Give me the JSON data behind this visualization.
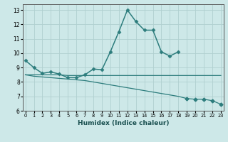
{
  "xlabel": "Humidex (Indice chaleur)",
  "x_values": [
    0,
    1,
    2,
    3,
    4,
    5,
    6,
    7,
    8,
    9,
    10,
    11,
    12,
    13,
    14,
    15,
    16,
    17,
    18,
    19,
    20,
    21,
    22,
    23
  ],
  "line1_y": [
    9.5,
    9.0,
    8.6,
    8.7,
    8.55,
    8.3,
    8.3,
    8.5,
    8.9,
    8.85,
    10.1,
    11.5,
    13.0,
    12.2,
    11.6,
    11.6,
    10.1,
    9.8,
    10.1,
    null,
    null,
    null,
    null,
    null
  ],
  "line2_y": [
    8.5,
    8.5,
    8.5,
    8.5,
    8.5,
    8.45,
    8.45,
    8.45,
    8.45,
    8.45,
    8.45,
    8.45,
    8.45,
    8.45,
    8.45,
    8.45,
    8.45,
    8.45,
    8.45,
    8.45,
    8.45,
    8.45,
    8.45,
    8.45
  ],
  "line3_y": [
    8.5,
    8.4,
    8.35,
    8.3,
    8.25,
    8.2,
    8.15,
    8.1,
    8.0,
    7.9,
    7.8,
    7.7,
    7.6,
    7.5,
    7.4,
    7.3,
    7.2,
    7.1,
    7.0,
    6.85,
    6.8,
    6.8,
    6.7,
    6.45
  ],
  "line3_markers": [
    null,
    null,
    null,
    null,
    null,
    null,
    null,
    null,
    null,
    null,
    null,
    null,
    null,
    null,
    null,
    null,
    null,
    null,
    null,
    6.85,
    6.8,
    6.8,
    6.7,
    6.45
  ],
  "background_color": "#cde8e8",
  "grid_color": "#b0d0d0",
  "line_color": "#2d7d7d",
  "ylim": [
    6.0,
    13.4
  ],
  "yticks": [
    6,
    7,
    8,
    9,
    10,
    11,
    12,
    13
  ],
  "xlim": [
    -0.3,
    23.3
  ]
}
